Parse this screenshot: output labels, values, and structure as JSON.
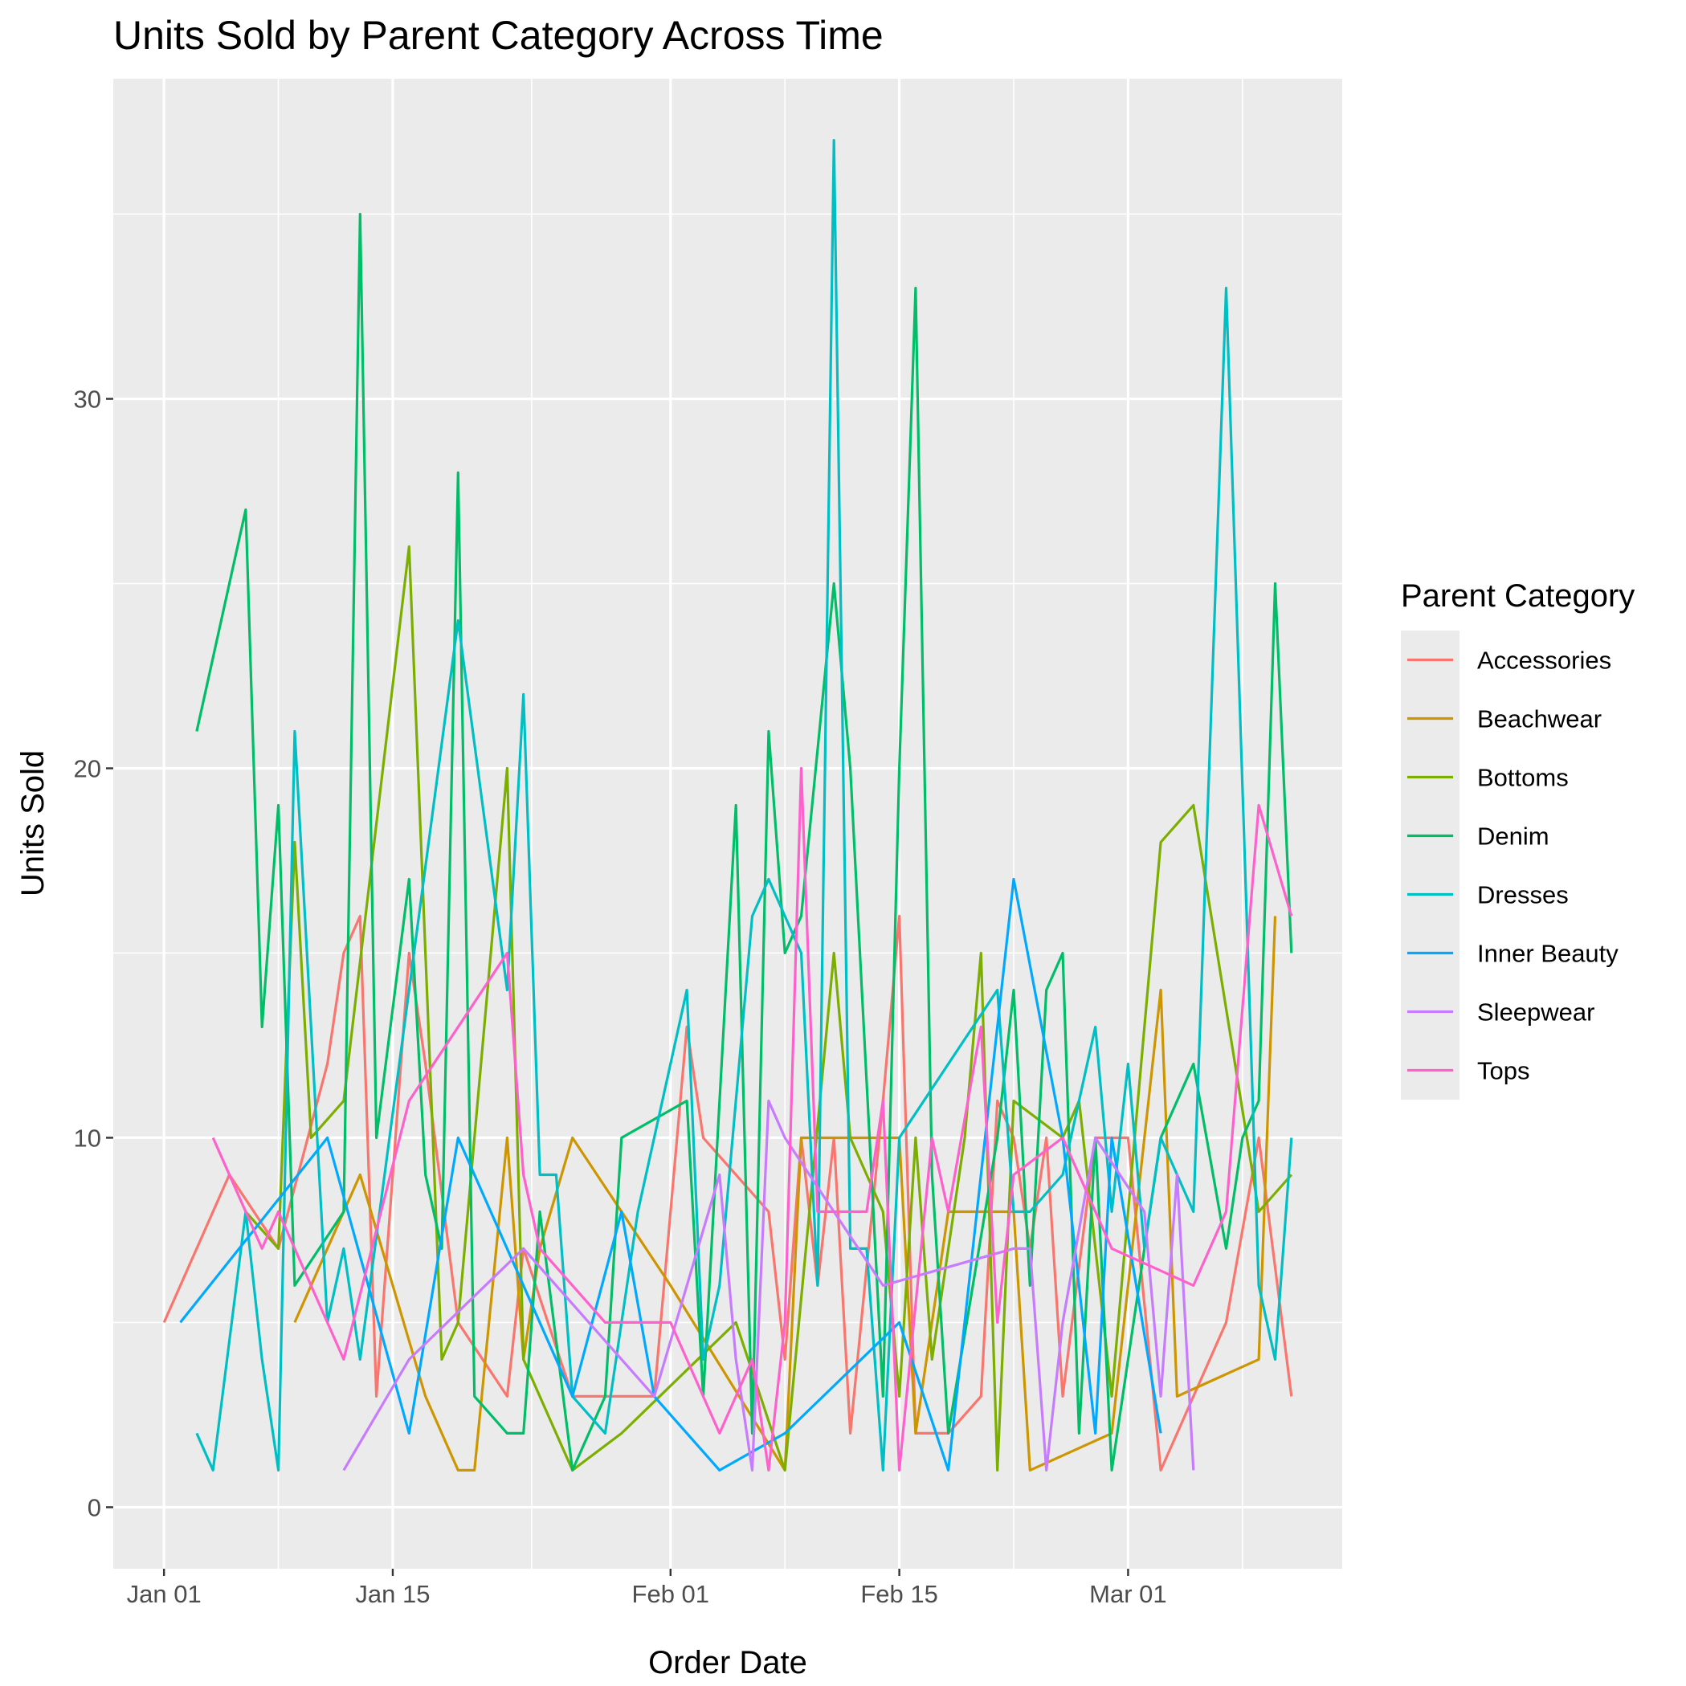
{
  "chart_data": {
    "type": "line",
    "title": "Units Sold by Parent Category Across Time",
    "xlabel": "Order Date",
    "ylabel": "Units Sold",
    "x_type": "date",
    "xlim": [
      "2023-01-01",
      "2023-03-11"
    ],
    "ylim": [
      0,
      37
    ],
    "x_ticks": [
      {
        "value": "2023-01-01",
        "label": "Jan 01"
      },
      {
        "value": "2023-01-15",
        "label": "Jan 15"
      },
      {
        "value": "2023-02-01",
        "label": "Feb 01"
      },
      {
        "value": "2023-02-15",
        "label": "Feb 15"
      },
      {
        "value": "2023-03-01",
        "label": "Mar 01"
      }
    ],
    "y_ticks": [
      0,
      10,
      20,
      30
    ],
    "grid": true,
    "legend": {
      "title": "Parent Category",
      "position": "right"
    },
    "series": [
      {
        "name": "Accessories",
        "color": "#F8766D",
        "points": [
          [
            "2023-01-01",
            5
          ],
          [
            "2023-01-05",
            9
          ],
          [
            "2023-01-08",
            7
          ],
          [
            "2023-01-11",
            12
          ],
          [
            "2023-01-12",
            15
          ],
          [
            "2023-01-13",
            16
          ],
          [
            "2023-01-14",
            3
          ],
          [
            "2023-01-16",
            15
          ],
          [
            "2023-01-17",
            12
          ],
          [
            "2023-01-19",
            5
          ],
          [
            "2023-01-22",
            3
          ],
          [
            "2023-01-23",
            7
          ],
          [
            "2023-01-26",
            3
          ],
          [
            "2023-01-31",
            3
          ],
          [
            "2023-02-02",
            13
          ],
          [
            "2023-02-03",
            10
          ],
          [
            "2023-02-07",
            8
          ],
          [
            "2023-02-08",
            4
          ],
          [
            "2023-02-09",
            10
          ],
          [
            "2023-02-10",
            6
          ],
          [
            "2023-02-11",
            10
          ],
          [
            "2023-02-12",
            2
          ],
          [
            "2023-02-14",
            11
          ],
          [
            "2023-02-15",
            16
          ],
          [
            "2023-02-16",
            2
          ],
          [
            "2023-02-18",
            2
          ],
          [
            "2023-02-20",
            3
          ],
          [
            "2023-02-21",
            11
          ],
          [
            "2023-02-22",
            10
          ],
          [
            "2023-02-23",
            7
          ],
          [
            "2023-02-24",
            10
          ],
          [
            "2023-02-25",
            3
          ],
          [
            "2023-02-27",
            10
          ],
          [
            "2023-03-01",
            10
          ],
          [
            "2023-03-03",
            1
          ],
          [
            "2023-03-05",
            3
          ],
          [
            "2023-03-07",
            5
          ],
          [
            "2023-03-09",
            10
          ],
          [
            "2023-03-11",
            3
          ]
        ]
      },
      {
        "name": "Beachwear",
        "color": "#CD9600",
        "points": [
          [
            "2023-01-09",
            5
          ],
          [
            "2023-01-13",
            9
          ],
          [
            "2023-01-17",
            3
          ],
          [
            "2023-01-19",
            1
          ],
          [
            "2023-01-20",
            1
          ],
          [
            "2023-01-22",
            10
          ],
          [
            "2023-01-23",
            4
          ],
          [
            "2023-01-24",
            7
          ],
          [
            "2023-01-26",
            10
          ],
          [
            "2023-02-01",
            6
          ],
          [
            "2023-02-08",
            1
          ],
          [
            "2023-02-09",
            10
          ],
          [
            "2023-02-15",
            10
          ],
          [
            "2023-02-16",
            2
          ],
          [
            "2023-02-18",
            8
          ],
          [
            "2023-02-22",
            8
          ],
          [
            "2023-02-23",
            1
          ],
          [
            "2023-02-28",
            2
          ],
          [
            "2023-03-03",
            14
          ],
          [
            "2023-03-04",
            3
          ],
          [
            "2023-03-09",
            4
          ],
          [
            "2023-03-10",
            16
          ]
        ]
      },
      {
        "name": "Bottoms",
        "color": "#7CAE00",
        "points": [
          [
            "2023-01-06",
            8
          ],
          [
            "2023-01-08",
            7
          ],
          [
            "2023-01-09",
            18
          ],
          [
            "2023-01-10",
            10
          ],
          [
            "2023-01-12",
            11
          ],
          [
            "2023-01-16",
            26
          ],
          [
            "2023-01-18",
            4
          ],
          [
            "2023-01-19",
            5
          ],
          [
            "2023-01-22",
            20
          ],
          [
            "2023-01-23",
            4
          ],
          [
            "2023-01-26",
            1
          ],
          [
            "2023-01-29",
            2
          ],
          [
            "2023-02-05",
            5
          ],
          [
            "2023-02-08",
            1
          ],
          [
            "2023-02-11",
            15
          ],
          [
            "2023-02-12",
            10
          ],
          [
            "2023-02-14",
            8
          ],
          [
            "2023-02-15",
            3
          ],
          [
            "2023-02-16",
            10
          ],
          [
            "2023-02-17",
            4
          ],
          [
            "2023-02-19",
            10
          ],
          [
            "2023-02-20",
            15
          ],
          [
            "2023-02-21",
            1
          ],
          [
            "2023-02-22",
            11
          ],
          [
            "2023-02-25",
            10
          ],
          [
            "2023-02-26",
            11
          ],
          [
            "2023-02-28",
            3
          ],
          [
            "2023-03-03",
            18
          ],
          [
            "2023-03-05",
            19
          ],
          [
            "2023-03-09",
            8
          ],
          [
            "2023-03-11",
            9
          ]
        ]
      },
      {
        "name": "Denim",
        "color": "#00BE67",
        "points": [
          [
            "2023-01-03",
            21
          ],
          [
            "2023-01-06",
            27
          ],
          [
            "2023-01-07",
            13
          ],
          [
            "2023-01-08",
            19
          ],
          [
            "2023-01-09",
            6
          ],
          [
            "2023-01-12",
            8
          ],
          [
            "2023-01-13",
            35
          ],
          [
            "2023-01-14",
            10
          ],
          [
            "2023-01-16",
            17
          ],
          [
            "2023-01-17",
            9
          ],
          [
            "2023-01-18",
            7
          ],
          [
            "2023-01-19",
            28
          ],
          [
            "2023-01-20",
            3
          ],
          [
            "2023-01-22",
            2
          ],
          [
            "2023-01-23",
            2
          ],
          [
            "2023-01-24",
            8
          ],
          [
            "2023-01-26",
            1
          ],
          [
            "2023-01-28",
            3
          ],
          [
            "2023-01-29",
            10
          ],
          [
            "2023-02-02",
            11
          ],
          [
            "2023-02-03",
            3
          ],
          [
            "2023-02-05",
            19
          ],
          [
            "2023-02-06",
            2
          ],
          [
            "2023-02-07",
            21
          ],
          [
            "2023-02-08",
            15
          ],
          [
            "2023-02-09",
            16
          ],
          [
            "2023-02-11",
            25
          ],
          [
            "2023-02-12",
            20
          ],
          [
            "2023-02-14",
            3
          ],
          [
            "2023-02-15",
            20
          ],
          [
            "2023-02-16",
            33
          ],
          [
            "2023-02-17",
            9
          ],
          [
            "2023-02-18",
            2
          ],
          [
            "2023-02-21",
            10
          ],
          [
            "2023-02-22",
            14
          ],
          [
            "2023-02-23",
            6
          ],
          [
            "2023-02-24",
            14
          ],
          [
            "2023-02-25",
            15
          ],
          [
            "2023-02-26",
            2
          ],
          [
            "2023-02-27",
            10
          ],
          [
            "2023-02-28",
            1
          ],
          [
            "2023-03-03",
            10
          ],
          [
            "2023-03-05",
            12
          ],
          [
            "2023-03-07",
            7
          ],
          [
            "2023-03-08",
            10
          ],
          [
            "2023-03-09",
            11
          ],
          [
            "2023-03-10",
            25
          ],
          [
            "2023-03-11",
            15
          ]
        ]
      },
      {
        "name": "Dresses",
        "color": "#00BFC4",
        "points": [
          [
            "2023-01-03",
            2
          ],
          [
            "2023-01-04",
            1
          ],
          [
            "2023-01-06",
            8
          ],
          [
            "2023-01-07",
            4
          ],
          [
            "2023-01-08",
            1
          ],
          [
            "2023-01-09",
            21
          ],
          [
            "2023-01-11",
            5
          ],
          [
            "2023-01-12",
            7
          ],
          [
            "2023-01-13",
            4
          ],
          [
            "2023-01-19",
            24
          ],
          [
            "2023-01-22",
            14
          ],
          [
            "2023-01-23",
            22
          ],
          [
            "2023-01-24",
            9
          ],
          [
            "2023-01-25",
            9
          ],
          [
            "2023-01-26",
            3
          ],
          [
            "2023-01-28",
            2
          ],
          [
            "2023-01-30",
            8
          ],
          [
            "2023-02-02",
            14
          ],
          [
            "2023-02-03",
            4
          ],
          [
            "2023-02-04",
            6
          ],
          [
            "2023-02-06",
            16
          ],
          [
            "2023-02-07",
            17
          ],
          [
            "2023-02-09",
            15
          ],
          [
            "2023-02-10",
            6
          ],
          [
            "2023-02-11",
            37
          ],
          [
            "2023-02-12",
            7
          ],
          [
            "2023-02-13",
            7
          ],
          [
            "2023-02-14",
            1
          ],
          [
            "2023-02-15",
            10
          ],
          [
            "2023-02-21",
            14
          ],
          [
            "2023-02-22",
            8
          ],
          [
            "2023-02-23",
            8
          ],
          [
            "2023-02-25",
            9
          ],
          [
            "2023-02-27",
            13
          ],
          [
            "2023-02-28",
            8
          ],
          [
            "2023-03-01",
            12
          ],
          [
            "2023-03-02",
            7
          ],
          [
            "2023-03-03",
            10
          ],
          [
            "2023-03-05",
            8
          ],
          [
            "2023-03-07",
            33
          ],
          [
            "2023-03-09",
            6
          ],
          [
            "2023-03-10",
            4
          ],
          [
            "2023-03-11",
            10
          ]
        ]
      },
      {
        "name": "Inner Beauty",
        "color": "#00A9FF",
        "points": [
          [
            "2023-01-02",
            5
          ],
          [
            "2023-01-11",
            10
          ],
          [
            "2023-01-16",
            2
          ],
          [
            "2023-01-19",
            10
          ],
          [
            "2023-01-26",
            3
          ],
          [
            "2023-01-29",
            8
          ],
          [
            "2023-01-31",
            3
          ],
          [
            "2023-02-04",
            1
          ],
          [
            "2023-02-08",
            2
          ],
          [
            "2023-02-15",
            5
          ],
          [
            "2023-02-18",
            1
          ],
          [
            "2023-02-22",
            17
          ],
          [
            "2023-02-25",
            10
          ],
          [
            "2023-02-27",
            2
          ],
          [
            "2023-02-28",
            10
          ],
          [
            "2023-03-03",
            2
          ]
        ]
      },
      {
        "name": "Sleepwear",
        "color": "#C77CFF",
        "points": [
          [
            "2023-01-12",
            1
          ],
          [
            "2023-01-16",
            4
          ],
          [
            "2023-01-23",
            7
          ],
          [
            "2023-01-31",
            3
          ],
          [
            "2023-02-04",
            9
          ],
          [
            "2023-02-05",
            4
          ],
          [
            "2023-02-06",
            1
          ],
          [
            "2023-02-07",
            11
          ],
          [
            "2023-02-08",
            10
          ],
          [
            "2023-02-11",
            8
          ],
          [
            "2023-02-14",
            6
          ],
          [
            "2023-02-22",
            7
          ],
          [
            "2023-02-23",
            7
          ],
          [
            "2023-02-24",
            1
          ],
          [
            "2023-02-25",
            5
          ],
          [
            "2023-02-27",
            10
          ],
          [
            "2023-03-02",
            8
          ],
          [
            "2023-03-03",
            3
          ],
          [
            "2023-03-04",
            9
          ],
          [
            "2023-03-05",
            1
          ]
        ]
      },
      {
        "name": "Tops",
        "color": "#FF61CC",
        "points": [
          [
            "2023-01-04",
            10
          ],
          [
            "2023-01-07",
            7
          ],
          [
            "2023-01-08",
            8
          ],
          [
            "2023-01-12",
            4
          ],
          [
            "2023-01-16",
            11
          ],
          [
            "2023-01-22",
            15
          ],
          [
            "2023-01-23",
            9
          ],
          [
            "2023-01-24",
            7
          ],
          [
            "2023-01-28",
            5
          ],
          [
            "2023-02-01",
            5
          ],
          [
            "2023-02-04",
            2
          ],
          [
            "2023-02-06",
            4
          ],
          [
            "2023-02-07",
            1
          ],
          [
            "2023-02-08",
            5
          ],
          [
            "2023-02-09",
            20
          ],
          [
            "2023-02-10",
            8
          ],
          [
            "2023-02-13",
            8
          ],
          [
            "2023-02-14",
            11
          ],
          [
            "2023-02-15",
            1
          ],
          [
            "2023-02-17",
            10
          ],
          [
            "2023-02-18",
            8
          ],
          [
            "2023-02-20",
            13
          ],
          [
            "2023-02-21",
            5
          ],
          [
            "2023-02-22",
            9
          ],
          [
            "2023-02-25",
            10
          ],
          [
            "2023-02-28",
            7
          ],
          [
            "2023-03-05",
            6
          ],
          [
            "2023-03-07",
            8
          ],
          [
            "2023-03-09",
            19
          ],
          [
            "2023-03-11",
            16
          ]
        ]
      }
    ]
  }
}
